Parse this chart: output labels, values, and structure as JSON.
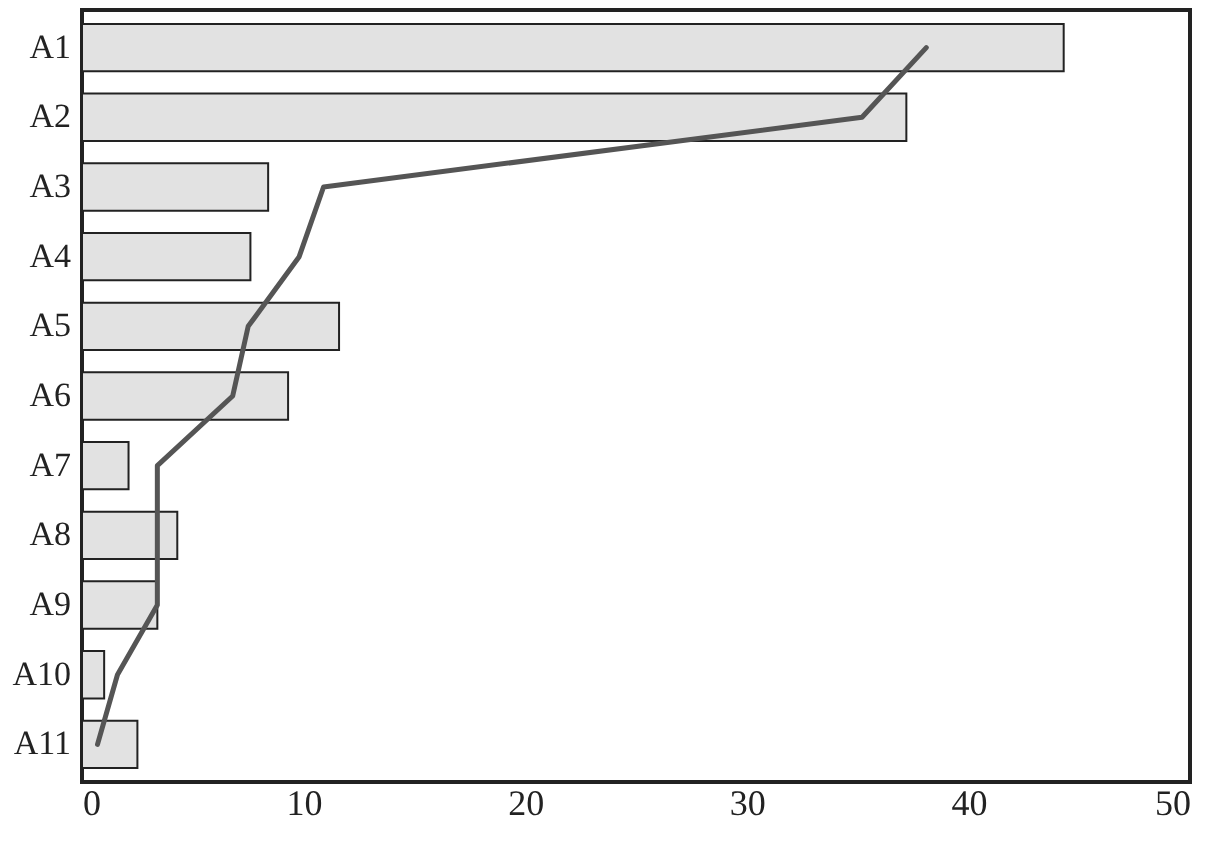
{
  "chart_data": {
    "type": "bar",
    "orientation": "horizontal",
    "categories": [
      "A1",
      "A2",
      "A3",
      "A4",
      "A5",
      "A6",
      "A7",
      "A8",
      "A9",
      "A10",
      "A11"
    ],
    "series": [
      {
        "color": "#e2e2e2",
        "values": [
          44.3,
          37.2,
          8.4,
          7.6,
          11.6,
          9.3,
          2.1,
          4.3,
          3.4,
          1.0,
          2.5
        ]
      },
      {
        "type": "line",
        "color": "#555555",
        "values": [
          38.1,
          35.2,
          10.9,
          9.8,
          7.5,
          6.8,
          3.4,
          3.4,
          3.4,
          1.6,
          0.7
        ]
      }
    ],
    "xlim": [
      0,
      50
    ],
    "xticks": [
      0,
      10,
      20,
      30,
      40,
      50
    ],
    "grid": false
  }
}
